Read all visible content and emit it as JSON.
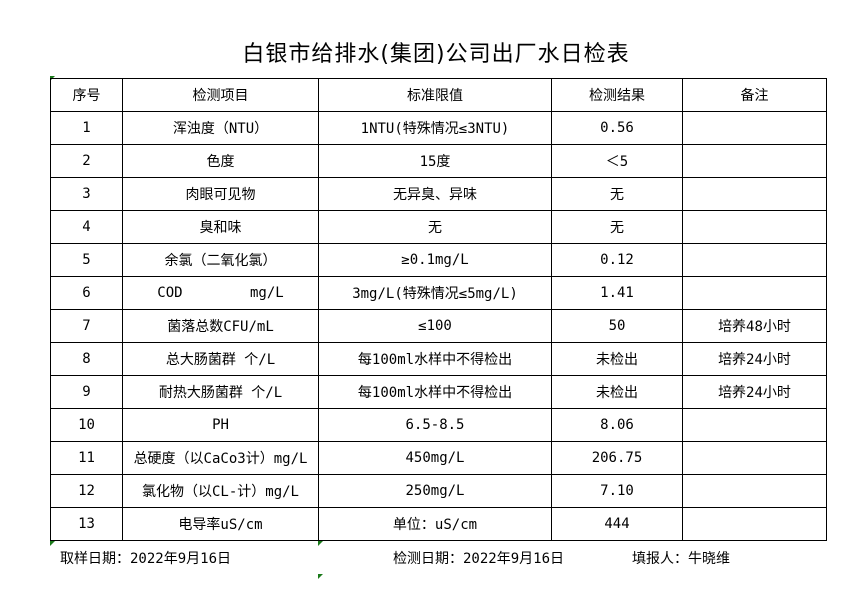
{
  "title": "白银市给排水(集团)公司出厂水日检表",
  "headers": [
    "序号",
    "检测项目",
    "标准限值",
    "检测结果",
    "备注"
  ],
  "rows": [
    [
      "1",
      "浑浊度（NTU）",
      "1NTU(特殊情况≤3NTU)",
      "0.56",
      ""
    ],
    [
      "2",
      "色度",
      "15度",
      "＜5",
      ""
    ],
    [
      "3",
      "肉眼可见物",
      "无异臭、异味",
      "无",
      ""
    ],
    [
      "4",
      "臭和味",
      "无",
      "无",
      ""
    ],
    [
      "5",
      "余氯（二氧化氯）",
      "≥0.1mg/L",
      "0.12",
      ""
    ],
    [
      "6",
      "COD        mg/L",
      "3mg/L(特殊情况≤5mg/L)",
      "1.41",
      ""
    ],
    [
      "7",
      "菌落总数CFU/mL",
      "≤100",
      "50",
      "培养48小时"
    ],
    [
      "8",
      "总大肠菌群 个/L",
      "每100ml水样中不得检出",
      "未检出",
      "培养24小时"
    ],
    [
      "9",
      "耐热大肠菌群 个/L",
      "每100ml水样中不得检出",
      "未检出",
      "培养24小时"
    ],
    [
      "10",
      "PH",
      "6.5-8.5",
      "8.06",
      ""
    ],
    [
      "11",
      "总硬度（以CaCo3计）mg/L",
      "450mg/L",
      "206.75",
      ""
    ],
    [
      "12",
      "氯化物（以CL-计）mg/L",
      "250mg/L",
      "7.10",
      ""
    ],
    [
      "13",
      "电导率uS/cm",
      "单位：uS/cm",
      "444",
      ""
    ]
  ],
  "footer": {
    "sample_date": "取样日期：2022年9月16日",
    "test_date": "检测日期：2022年9月16日",
    "reporter": "填报人：牛晓维"
  }
}
